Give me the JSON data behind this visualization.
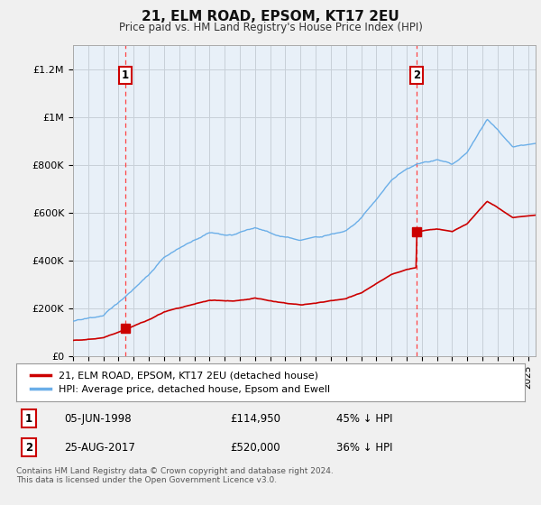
{
  "title": "21, ELM ROAD, EPSOM, KT17 2EU",
  "subtitle": "Price paid vs. HM Land Registry's House Price Index (HPI)",
  "ylabel_ticks": [
    "£0",
    "£200K",
    "£400K",
    "£600K",
    "£800K",
    "£1M",
    "£1.2M"
  ],
  "ytick_values": [
    0,
    200000,
    400000,
    600000,
    800000,
    1000000,
    1200000
  ],
  "ylim": [
    0,
    1300000
  ],
  "xlim_start": 1995,
  "xlim_end": 2025.5,
  "purchase1_date": 1998.43,
  "purchase1_price": 114950,
  "purchase2_date": 2017.65,
  "purchase2_price": 520000,
  "line_color_hpi": "#6aaee8",
  "line_color_price": "#cc0000",
  "dashed_vline_color": "#ff4444",
  "legend_label_price": "21, ELM ROAD, EPSOM, KT17 2EU (detached house)",
  "legend_label_hpi": "HPI: Average price, detached house, Epsom and Ewell",
  "annotation1_label": "1",
  "annotation2_label": "2",
  "footnote": "Contains HM Land Registry data © Crown copyright and database right 2024.\nThis data is licensed under the Open Government Licence v3.0.",
  "background_color": "#f0f0f0",
  "plot_bg_color": "#e8f0f8",
  "grid_color": "#c8d0d8"
}
